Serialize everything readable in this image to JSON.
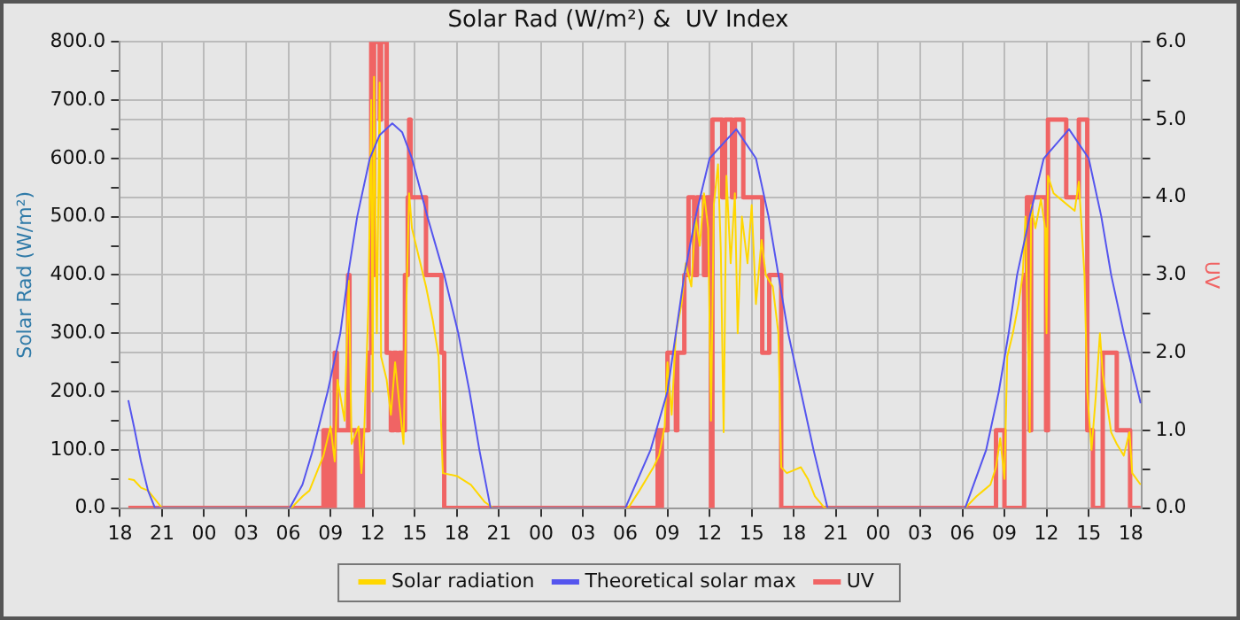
{
  "chart_data": {
    "type": "line",
    "title": "Solar Rad (W/m²) &  UV Index",
    "ylabel": "Solar Rad (W/m²)",
    "y2label": "UV",
    "xlim": [
      "--01-01T18:00",
      "--01-04T18:45"
    ],
    "xticks": [
      {
        "value": "--01-01T18:00",
        "label": "18"
      },
      {
        "value": "--01-01T21:00",
        "label": "21"
      },
      {
        "value": "--01-02T00:00",
        "label": "00"
      },
      {
        "value": "--01-02T03:00",
        "label": "03"
      },
      {
        "value": "--01-02T06:00",
        "label": "06"
      },
      {
        "value": "--01-02T09:00",
        "label": "09"
      },
      {
        "value": "--01-02T12:00",
        "label": "12"
      },
      {
        "value": "--01-02T15:00",
        "label": "15"
      },
      {
        "value": "--01-02T18:00",
        "label": "18"
      },
      {
        "value": "--01-02T21:00",
        "label": "21"
      },
      {
        "value": "--01-03T00:00",
        "label": "00"
      },
      {
        "value": "--01-03T03:00",
        "label": "03"
      },
      {
        "value": "--01-03T06:00",
        "label": "06"
      },
      {
        "value": "--01-03T09:00",
        "label": "09"
      },
      {
        "value": "--01-03T12:00",
        "label": "12"
      },
      {
        "value": "--01-03T15:00",
        "label": "15"
      },
      {
        "value": "--01-03T18:00",
        "label": "18"
      },
      {
        "value": "--01-03T21:00",
        "label": "21"
      },
      {
        "value": "--01-04T00:00",
        "label": "00"
      },
      {
        "value": "--01-04T03:00",
        "label": "03"
      },
      {
        "value": "--01-04T06:00",
        "label": "06"
      },
      {
        "value": "--01-04T09:00",
        "label": "09"
      },
      {
        "value": "--01-04T12:00",
        "label": "12"
      },
      {
        "value": "--01-04T15:00",
        "label": "15"
      },
      {
        "value": "--01-04T18:00",
        "label": "18"
      }
    ],
    "ylim": [
      0,
      800
    ],
    "yticks": [
      {
        "value": 0,
        "label": "0.0"
      },
      {
        "value": 50,
        "label": null
      },
      {
        "value": 100,
        "label": "100.0"
      },
      {
        "value": 150,
        "label": null
      },
      {
        "value": 200,
        "label": "200.0"
      },
      {
        "value": 250,
        "label": null
      },
      {
        "value": 300,
        "label": "300.0"
      },
      {
        "value": 350,
        "label": null
      },
      {
        "value": 400,
        "label": "400.0"
      },
      {
        "value": 450,
        "label": null
      },
      {
        "value": 500,
        "label": "500.0"
      },
      {
        "value": 550,
        "label": null
      },
      {
        "value": 600,
        "label": "600.0"
      },
      {
        "value": 650,
        "label": null
      },
      {
        "value": 700,
        "label": "700.0"
      },
      {
        "value": 750,
        "label": null
      },
      {
        "value": 800,
        "label": "800.0"
      }
    ],
    "y2lim": [
      0,
      6
    ],
    "y2ticks": [
      {
        "value": 0,
        "label": "0.0"
      },
      {
        "value": 0.5,
        "label": null
      },
      {
        "value": 1,
        "label": "1.0"
      },
      {
        "value": 1.5,
        "label": null
      },
      {
        "value": 2,
        "label": "2.0"
      },
      {
        "value": 2.5,
        "label": null
      },
      {
        "value": 3,
        "label": "3.0"
      },
      {
        "value": 3.5,
        "label": null
      },
      {
        "value": 4,
        "label": "4.0"
      },
      {
        "value": 4.5,
        "label": null
      },
      {
        "value": 5,
        "label": "5.0"
      },
      {
        "value": 5.5,
        "label": null
      },
      {
        "value": 6,
        "label": "6.0"
      }
    ],
    "grid": true,
    "legend": "bottom",
    "marker": "none",
    "line_style": "solid",
    "series": [
      {
        "name": "Solar radiation",
        "color": "#ffd700",
        "x": [
          "--01-01T18:36",
          "--01-01T19:00",
          "--01-01T19:30",
          "--01-01T20:00",
          "--01-01T20:30",
          "--01-01T21:00",
          "--01-02T06:12",
          "--01-02T07:00",
          "--01-02T07:30",
          "--01-02T08:00",
          "--01-02T08:30",
          "--01-02T09:00",
          "--01-02T09:18",
          "--01-02T09:30",
          "--01-02T10:00",
          "--01-02T10:18",
          "--01-02T10:30",
          "--01-02T11:00",
          "--01-02T11:12",
          "--01-02T11:24",
          "--01-02T11:42",
          "--01-02T11:54",
          "--01-02T12:00",
          "--01-02T12:06",
          "--01-02T12:18",
          "--01-02T12:30",
          "--01-02T12:36",
          "--01-02T13:00",
          "--01-02T13:18",
          "--01-02T13:36",
          "--01-02T13:54",
          "--01-02T14:12",
          "--01-02T14:24",
          "--01-02T14:36",
          "--01-02T14:48",
          "--01-02T15:18",
          "--01-02T15:48",
          "--01-02T16:18",
          "--01-02T16:42",
          "--01-02T17:00",
          "--01-02T18:00",
          "--01-02T19:00",
          "--01-02T20:00",
          "--01-02T20:36",
          "--01-03T06:12",
          "--01-03T07:00",
          "--01-03T07:30",
          "--01-03T08:00",
          "--01-03T08:24",
          "--01-03T08:48",
          "--01-03T09:00",
          "--01-03T09:18",
          "--01-03T09:36",
          "--01-03T10:00",
          "--01-03T10:18",
          "--01-03T10:42",
          "--01-03T11:00",
          "--01-03T11:18",
          "--01-03T11:36",
          "--01-03T11:54",
          "--01-03T12:06",
          "--01-03T12:18",
          "--01-03T12:36",
          "--01-03T12:48",
          "--01-03T13:00",
          "--01-03T13:12",
          "--01-03T13:30",
          "--01-03T13:48",
          "--01-03T14:00",
          "--01-03T14:18",
          "--01-03T14:42",
          "--01-03T15:00",
          "--01-03T15:18",
          "--01-03T15:42",
          "--01-03T16:00",
          "--01-03T16:30",
          "--01-03T16:54",
          "--01-03T17:06",
          "--01-03T17:30",
          "--01-03T18:00",
          "--01-03T18:30",
          "--01-03T19:00",
          "--01-03T19:30",
          "--01-03T20:12",
          "--01-04T06:12",
          "--01-04T07:00",
          "--01-04T07:30",
          "--01-04T08:00",
          "--01-04T08:24",
          "--01-04T08:42",
          "--01-04T09:00",
          "--01-04T09:12",
          "--01-04T09:36",
          "--01-04T10:00",
          "--01-04T10:18",
          "--01-04T10:30",
          "--01-04T10:48",
          "--01-04T10:54",
          "--01-04T11:12",
          "--01-04T11:36",
          "--01-04T11:54",
          "--01-04T12:00",
          "--01-04T12:06",
          "--01-04T12:30",
          "--01-04T13:00",
          "--01-04T13:30",
          "--01-04T14:00",
          "--01-04T14:18",
          "--01-04T14:42",
          "--01-04T14:54",
          "--01-04T15:12",
          "--01-04T15:30",
          "--01-04T15:48",
          "--01-04T16:00",
          "--01-04T16:18",
          "--01-04T16:36",
          "--01-04T17:00",
          "--01-04T17:30",
          "--01-04T17:54",
          "--01-04T18:06",
          "--01-04T18:42"
        ],
        "values": [
          50,
          48,
          35,
          30,
          15,
          0,
          0,
          20,
          30,
          60,
          90,
          140,
          80,
          220,
          150,
          390,
          110,
          140,
          60,
          130,
          350,
          700,
          200,
          740,
          300,
          730,
          260,
          220,
          160,
          250,
          180,
          110,
          350,
          540,
          480,
          430,
          380,
          320,
          260,
          60,
          55,
          40,
          10,
          0,
          0,
          30,
          50,
          70,
          90,
          140,
          250,
          160,
          300,
          350,
          420,
          380,
          500,
          450,
          540,
          480,
          150,
          520,
          590,
          440,
          130,
          570,
          420,
          540,
          300,
          500,
          420,
          520,
          350,
          460,
          400,
          380,
          300,
          70,
          60,
          65,
          70,
          50,
          20,
          0,
          0,
          20,
          30,
          40,
          70,
          120,
          50,
          260,
          300,
          350,
          400,
          500,
          130,
          520,
          480,
          530,
          480,
          300,
          570,
          540,
          530,
          520,
          510,
          560,
          400,
          200,
          100,
          190,
          300,
          230,
          180,
          130,
          110,
          90,
          130,
          60,
          40
        ]
      },
      {
        "name": "Theoretical solar max",
        "color": "#5555ee",
        "x": [
          "--01-01T18:36",
          "--01-01T19:00",
          "--01-01T19:30",
          "--01-01T20:00",
          "--01-01T20:30",
          "--01-02T06:06",
          "--01-02T07:00",
          "--01-02T07:45",
          "--01-02T08:48",
          "--01-02T09:42",
          "--01-02T10:15",
          "--01-02T10:54",
          "--01-02T11:48",
          "--01-02T12:30",
          "--01-02T13:24",
          "--01-02T14:06",
          "--01-02T14:48",
          "--01-02T15:54",
          "--01-02T17:06",
          "--01-02T18:06",
          "--01-02T18:54",
          "--01-02T19:36",
          "--01-02T20:24",
          "--01-03T06:00",
          "--01-03T07:48",
          "--01-03T09:00",
          "--01-03T09:36",
          "--01-03T10:12",
          "--01-03T11:00",
          "--01-03T12:00",
          "--01-03T13:54",
          "--01-03T15:18",
          "--01-03T16:12",
          "--01-03T16:54",
          "--01-03T17:36",
          "--01-03T18:30",
          "--01-03T19:24",
          "--01-03T20:24",
          "--01-04T06:12",
          "--01-04T07:42",
          "--01-04T08:36",
          "--01-04T09:18",
          "--01-04T09:54",
          "--01-04T10:48",
          "--01-04T11:48",
          "--01-04T13:36",
          "--01-04T15:00",
          "--01-04T15:54",
          "--01-04T16:36",
          "--01-04T17:30",
          "--01-04T18:30",
          "--01-04T18:42"
        ],
        "values": [
          185,
          140,
          80,
          30,
          0,
          0,
          40,
          100,
          200,
          300,
          400,
          500,
          600,
          640,
          660,
          645,
          600,
          500,
          400,
          300,
          200,
          100,
          0,
          0,
          100,
          200,
          300,
          400,
          500,
          600,
          650,
          600,
          500,
          400,
          300,
          200,
          100,
          0,
          0,
          100,
          200,
          300,
          400,
          500,
          600,
          650,
          600,
          500,
          400,
          300,
          200,
          180
        ]
      },
      {
        "name": "UV",
        "type": "step",
        "axis": "y2",
        "color": "#f06464",
        "x": [
          "--01-01T18:36",
          "--01-02T08:30",
          "--01-02T08:48",
          "--01-02T09:00",
          "--01-02T09:12",
          "--01-02T09:18",
          "--01-02T09:27",
          "--01-02T10:15",
          "--01-02T10:21",
          "--01-02T10:48",
          "--01-02T11:00",
          "--01-02T11:06",
          "--01-02T11:18",
          "--01-02T11:42",
          "--01-02T11:54",
          "--01-02T12:00",
          "--01-02T12:06",
          "--01-02T12:30",
          "--01-02T12:36",
          "--01-02T13:00",
          "--01-02T13:18",
          "--01-02T13:30",
          "--01-02T13:42",
          "--01-02T13:54",
          "--01-02T14:06",
          "--01-02T14:18",
          "--01-02T14:30",
          "--01-02T14:36",
          "--01-02T14:42",
          "--01-02T15:48",
          "--01-02T16:54",
          "--01-02T17:06",
          "--01-03T08:18",
          "--01-03T08:27",
          "--01-03T08:36",
          "--01-03T09:00",
          "--01-03T09:36",
          "--01-03T09:42",
          "--01-03T10:12",
          "--01-03T10:30",
          "--01-03T10:54",
          "--01-03T11:06",
          "--01-03T11:36",
          "--01-03T11:48",
          "--01-03T12:06",
          "--01-03T12:12",
          "--01-03T12:54",
          "--01-03T13:06",
          "--01-03T13:36",
          "--01-03T13:48",
          "--01-03T14:24",
          "--01-03T15:45",
          "--01-03T16:15",
          "--01-03T17:06",
          "--01-04T08:24",
          "--01-04T09:00",
          "--01-04T10:24",
          "--01-04T10:36",
          "--01-04T10:48",
          "--01-04T10:54",
          "--01-04T11:58",
          "--01-04T12:06",
          "--01-04T13:24",
          "--01-04T14:18",
          "--01-04T14:54",
          "--01-04T15:18",
          "--01-04T16:00",
          "--01-04T17:00",
          "--01-04T17:57",
          "--01-04T18:42"
        ],
        "values": [
          0,
          1,
          0,
          1,
          0,
          2,
          1,
          3,
          1,
          0,
          1,
          0,
          1,
          2,
          6,
          3,
          6,
          5,
          6,
          2,
          1,
          2,
          1,
          2,
          1,
          3,
          4,
          5,
          4,
          3,
          2,
          0,
          1,
          0,
          1,
          2,
          1,
          2,
          3,
          4,
          3,
          4,
          3,
          4,
          0,
          5,
          4,
          5,
          4,
          5,
          4,
          2,
          3,
          0,
          1,
          0,
          3,
          4,
          1,
          4,
          1,
          5,
          4,
          5,
          1,
          0,
          2,
          1,
          0,
          0
        ]
      }
    ]
  }
}
